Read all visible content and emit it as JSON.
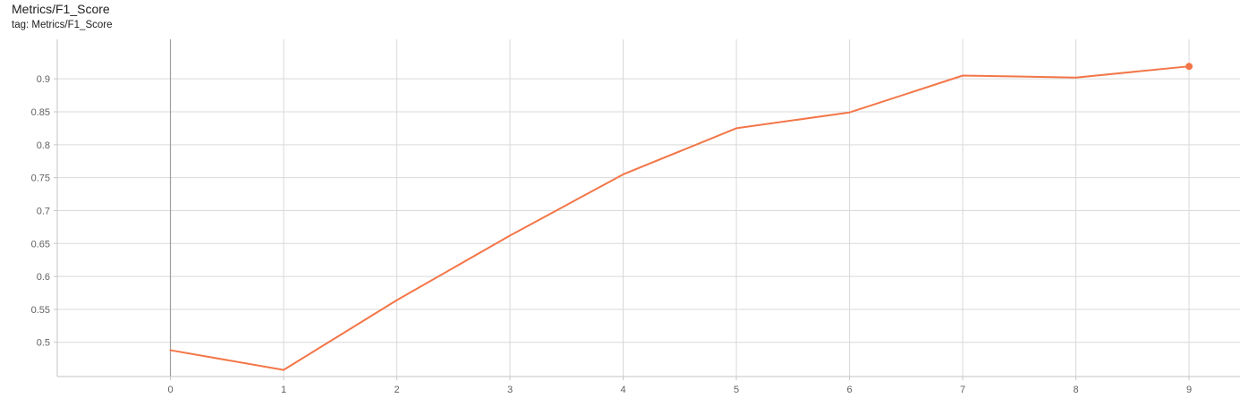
{
  "card": {
    "title": "Metrics/F1_Score",
    "subtitle": "tag: Metrics/F1_Score"
  },
  "chart_data": {
    "type": "line",
    "title": "Metrics/F1_Score",
    "xlabel": "",
    "ylabel": "",
    "x": [
      0,
      1,
      2,
      3,
      4,
      5,
      6,
      7,
      8,
      9
    ],
    "series": [
      {
        "name": "",
        "color": "#f37648",
        "values": [
          0.488,
          0.458,
          0.564,
          0.662,
          0.755,
          0.825,
          0.849,
          0.905,
          0.902,
          0.919
        ]
      }
    ],
    "xticks": [
      0,
      1,
      2,
      3,
      4,
      5,
      6,
      7,
      8,
      9
    ],
    "yticks": [
      0.5,
      0.55,
      0.6,
      0.65,
      0.7,
      0.75,
      0.8,
      0.85,
      0.9
    ],
    "ytick_labels": [
      "0.5",
      "0.55",
      "0.6",
      "0.65",
      "0.7",
      "0.75",
      "0.8",
      "0.85",
      "0.9"
    ],
    "xlim": [
      -1,
      9.45
    ],
    "ylim": [
      0.448,
      0.96
    ],
    "grid": true,
    "legend": "none",
    "colors": {
      "line": "#f37648",
      "grid": "#d9d9d9",
      "axis": "#c6c6c6",
      "zero_line": "#9e9e9e"
    }
  }
}
